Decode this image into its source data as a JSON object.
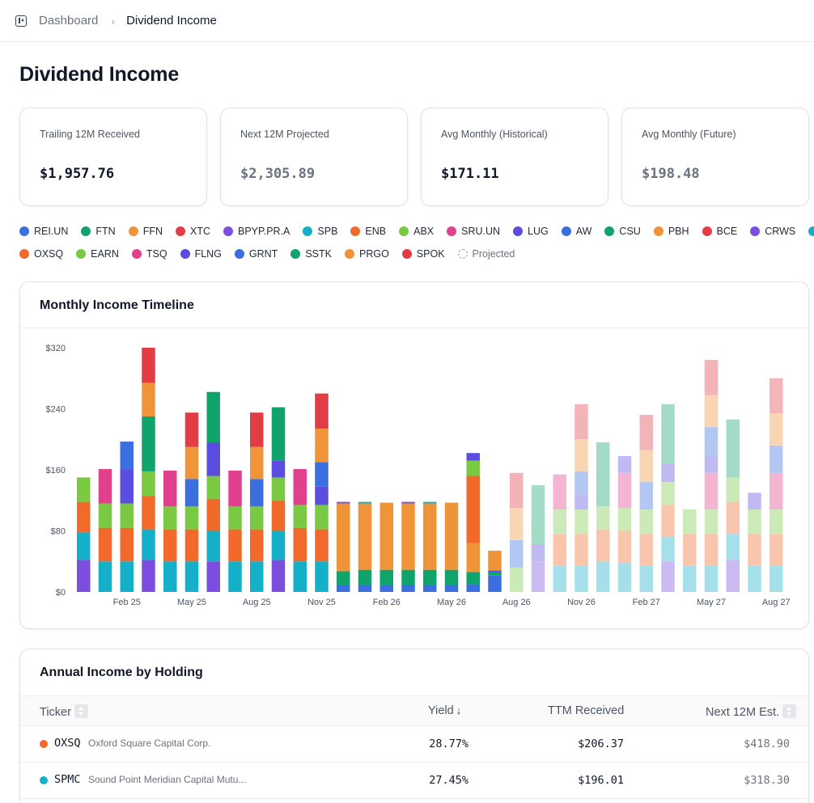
{
  "breadcrumb": {
    "parent": "Dashboard",
    "separator": "›",
    "current": "Dividend Income"
  },
  "page_title": "Dividend Income",
  "stats": [
    {
      "label": "Trailing 12M Received",
      "value": "$1,957.76",
      "projected": false
    },
    {
      "label": "Next 12M Projected",
      "value": "$2,305.89",
      "projected": true
    },
    {
      "label": "Avg Monthly (Historical)",
      "value": "$171.11",
      "projected": false
    },
    {
      "label": "Avg Monthly (Future)",
      "value": "$198.48",
      "projected": true
    }
  ],
  "legend": {
    "rows": [
      [
        {
          "ticker": "REI.UN",
          "color": "#3b6fe0"
        },
        {
          "ticker": "FTN",
          "color": "#10a36b"
        },
        {
          "ticker": "FFN",
          "color": "#f0943a"
        },
        {
          "ticker": "XTC",
          "color": "#e23c44"
        },
        {
          "ticker": "BPYP.PR.A",
          "color": "#7c4ee0"
        },
        {
          "ticker": "SPB",
          "color": "#14b0c9"
        },
        {
          "ticker": "ENB",
          "color": "#f26a2b"
        },
        {
          "ticker": "ABX",
          "color": "#7ac943"
        },
        {
          "ticker": "SRU.UN",
          "color": "#e0408c"
        },
        {
          "ticker": "LUG",
          "color": "#5b4de0"
        },
        {
          "ticker": "AW",
          "color": "#3b6fe0"
        },
        {
          "ticker": "CSU",
          "color": "#10a36b"
        },
        {
          "ticker": "PBH",
          "color": "#f0943a"
        },
        {
          "ticker": "BCE",
          "color": "#e23c44"
        },
        {
          "ticker": "CRWS",
          "color": "#7c4ee0"
        },
        {
          "ticker": "SPMC",
          "color": "#14b0c9"
        }
      ],
      [
        {
          "ticker": "OXSQ",
          "color": "#f26a2b"
        },
        {
          "ticker": "EARN",
          "color": "#7ac943"
        },
        {
          "ticker": "TSQ",
          "color": "#e0408c"
        },
        {
          "ticker": "FLNG",
          "color": "#5b4de0"
        },
        {
          "ticker": "GRNT",
          "color": "#3b6fe0"
        },
        {
          "ticker": "SSTK",
          "color": "#10a36b"
        },
        {
          "ticker": "PRGO",
          "color": "#f0943a"
        },
        {
          "ticker": "SPOK",
          "color": "#e23c44"
        }
      ]
    ],
    "projected_label": "Projected"
  },
  "timeline": {
    "title": "Monthly Income Timeline"
  },
  "chart_data": {
    "type": "bar",
    "stacked": true,
    "title": "Monthly Income Timeline",
    "x_ticks": [
      "Feb 25",
      "May 25",
      "Aug 25",
      "Nov 25",
      "Feb 26",
      "May 26",
      "Aug 26",
      "Nov 26",
      "Feb 27",
      "May 27",
      "Aug 27"
    ],
    "y_ticks": [
      "$0",
      "$80",
      "$160",
      "$240",
      "$320"
    ],
    "ylim": [
      0,
      320
    ],
    "grid": false,
    "colors": {
      "blue": "#3b6fe0",
      "green": "#10a36b",
      "orange": "#f0943a",
      "red": "#e23c44",
      "purple": "#7c4ee0",
      "cyan": "#14b0c9",
      "redorange": "#f26a2b",
      "lime": "#7ac943",
      "pink": "#e0408c",
      "indigo": "#5b4de0"
    },
    "months": [
      {
        "m": "Dec 24",
        "projected": false,
        "segs": [
          [
            "purple",
            42
          ],
          [
            "cyan",
            36
          ],
          [
            "redorange",
            40
          ],
          [
            "lime",
            32
          ]
        ]
      },
      {
        "m": "Jan 25",
        "projected": false,
        "segs": [
          [
            "cyan",
            40
          ],
          [
            "redorange",
            44
          ],
          [
            "lime",
            32
          ],
          [
            "pink",
            45
          ]
        ]
      },
      {
        "m": "Feb 25",
        "projected": false,
        "segs": [
          [
            "cyan",
            40
          ],
          [
            "redorange",
            44
          ],
          [
            "lime",
            32
          ],
          [
            "indigo",
            45
          ],
          [
            "blue",
            36
          ]
        ]
      },
      {
        "m": "Mar 25",
        "projected": false,
        "segs": [
          [
            "purple",
            42
          ],
          [
            "cyan",
            40
          ],
          [
            "redorange",
            44
          ],
          [
            "lime",
            32
          ],
          [
            "green",
            72
          ],
          [
            "orange",
            44
          ],
          [
            "red",
            46
          ]
        ]
      },
      {
        "m": "Apr 25",
        "projected": false,
        "segs": [
          [
            "cyan",
            40
          ],
          [
            "redorange",
            42
          ],
          [
            "lime",
            30
          ],
          [
            "pink",
            47
          ]
        ]
      },
      {
        "m": "May 25",
        "projected": false,
        "segs": [
          [
            "cyan",
            40
          ],
          [
            "redorange",
            42
          ],
          [
            "lime",
            30
          ],
          [
            "blue",
            36
          ],
          [
            "orange",
            42
          ],
          [
            "red",
            45
          ]
        ]
      },
      {
        "m": "Jun 25",
        "projected": false,
        "segs": [
          [
            "purple",
            40
          ],
          [
            "cyan",
            40
          ],
          [
            "redorange",
            42
          ],
          [
            "lime",
            30
          ],
          [
            "indigo",
            44
          ],
          [
            "green",
            66
          ]
        ]
      },
      {
        "m": "Jul 25",
        "projected": false,
        "segs": [
          [
            "cyan",
            40
          ],
          [
            "redorange",
            42
          ],
          [
            "lime",
            30
          ],
          [
            "pink",
            47
          ]
        ]
      },
      {
        "m": "Aug 25",
        "projected": false,
        "segs": [
          [
            "cyan",
            40
          ],
          [
            "redorange",
            42
          ],
          [
            "lime",
            30
          ],
          [
            "blue",
            36
          ],
          [
            "orange",
            42
          ],
          [
            "red",
            45
          ]
        ]
      },
      {
        "m": "Sep 25",
        "projected": false,
        "segs": [
          [
            "purple",
            42
          ],
          [
            "cyan",
            38
          ],
          [
            "redorange",
            40
          ],
          [
            "lime",
            30
          ],
          [
            "indigo",
            22
          ],
          [
            "green",
            70
          ]
        ]
      },
      {
        "m": "Oct 25",
        "projected": false,
        "segs": [
          [
            "cyan",
            40
          ],
          [
            "redorange",
            44
          ],
          [
            "lime",
            30
          ],
          [
            "pink",
            47
          ]
        ]
      },
      {
        "m": "Nov 25",
        "projected": false,
        "segs": [
          [
            "cyan",
            40
          ],
          [
            "redorange",
            42
          ],
          [
            "lime",
            32
          ],
          [
            "indigo",
            24
          ],
          [
            "blue",
            32
          ],
          [
            "orange",
            44
          ],
          [
            "red",
            46
          ]
        ]
      },
      {
        "m": "Dec 25",
        "projected": false,
        "segs": [
          [
            "blue",
            9
          ],
          [
            "green",
            18
          ],
          [
            "orange",
            89
          ],
          [
            "purple",
            2
          ]
        ]
      },
      {
        "m": "Jan 26",
        "projected": false,
        "segs": [
          [
            "blue",
            9
          ],
          [
            "green",
            20
          ],
          [
            "orange",
            87
          ],
          [
            "cyan",
            2
          ]
        ]
      },
      {
        "m": "Feb 26",
        "projected": false,
        "segs": [
          [
            "blue",
            9
          ],
          [
            "green",
            20
          ],
          [
            "orange",
            88
          ]
        ]
      },
      {
        "m": "Mar 26",
        "projected": false,
        "segs": [
          [
            "blue",
            9
          ],
          [
            "green",
            20
          ],
          [
            "orange",
            87
          ],
          [
            "purple",
            2
          ]
        ]
      },
      {
        "m": "Apr 26",
        "projected": false,
        "segs": [
          [
            "blue",
            9
          ],
          [
            "green",
            20
          ],
          [
            "orange",
            87
          ],
          [
            "cyan",
            2
          ]
        ]
      },
      {
        "m": "May 26",
        "projected": false,
        "segs": [
          [
            "blue",
            9
          ],
          [
            "green",
            20
          ],
          [
            "orange",
            88
          ]
        ]
      },
      {
        "m": "Jun 26",
        "projected": false,
        "segs": [
          [
            "blue",
            10
          ],
          [
            "green",
            16
          ],
          [
            "orange",
            38
          ],
          [
            "redorange",
            88
          ],
          [
            "lime",
            20
          ],
          [
            "indigo",
            10
          ]
        ]
      },
      {
        "m": "Jul 26",
        "projected": false,
        "segs": [
          [
            "blue",
            22
          ],
          [
            "green",
            4
          ],
          [
            "indigo",
            2
          ],
          [
            "orange",
            26
          ]
        ]
      },
      {
        "m": "Aug 26",
        "projected": true,
        "segs": [
          [
            "lime",
            32
          ],
          [
            "blue",
            36
          ],
          [
            "orange",
            42
          ],
          [
            "red",
            46
          ]
        ]
      },
      {
        "m": "Sep 26",
        "projected": true,
        "segs": [
          [
            "purple",
            40
          ],
          [
            "indigo",
            22
          ],
          [
            "green",
            78
          ]
        ]
      },
      {
        "m": "Oct 26",
        "projected": true,
        "segs": [
          [
            "cyan",
            34
          ],
          [
            "redorange",
            42
          ],
          [
            "lime",
            32
          ],
          [
            "pink",
            46
          ]
        ]
      },
      {
        "m": "Nov 26",
        "projected": true,
        "segs": [
          [
            "cyan",
            34
          ],
          [
            "redorange",
            42
          ],
          [
            "lime",
            32
          ],
          [
            "indigo",
            20
          ],
          [
            "blue",
            30
          ],
          [
            "orange",
            42
          ],
          [
            "red",
            46
          ]
        ]
      },
      {
        "m": "Dec 26",
        "projected": true,
        "segs": [
          [
            "cyan",
            40
          ],
          [
            "redorange",
            42
          ],
          [
            "lime",
            30
          ],
          [
            "green",
            84
          ]
        ]
      },
      {
        "m": "Jan 27",
        "projected": true,
        "segs": [
          [
            "cyan",
            38
          ],
          [
            "redorange",
            42
          ],
          [
            "lime",
            30
          ],
          [
            "pink",
            46
          ],
          [
            "indigo",
            22
          ]
        ]
      },
      {
        "m": "Feb 27",
        "projected": true,
        "segs": [
          [
            "cyan",
            34
          ],
          [
            "redorange",
            42
          ],
          [
            "lime",
            32
          ],
          [
            "blue",
            36
          ],
          [
            "orange",
            42
          ],
          [
            "red",
            46
          ]
        ]
      },
      {
        "m": "Mar 27",
        "projected": true,
        "segs": [
          [
            "purple",
            40
          ],
          [
            "cyan",
            32
          ],
          [
            "redorange",
            42
          ],
          [
            "lime",
            30
          ],
          [
            "indigo",
            24
          ],
          [
            "green",
            78
          ]
        ]
      },
      {
        "m": "Apr 27",
        "projected": true,
        "segs": [
          [
            "cyan",
            34
          ],
          [
            "redorange",
            42
          ],
          [
            "lime",
            32
          ]
        ]
      },
      {
        "m": "May 27",
        "projected": true,
        "segs": [
          [
            "cyan",
            34
          ],
          [
            "redorange",
            42
          ],
          [
            "lime",
            32
          ],
          [
            "pink",
            48
          ],
          [
            "indigo",
            22
          ],
          [
            "blue",
            38
          ],
          [
            "orange",
            42
          ],
          [
            "red",
            46
          ]
        ]
      },
      {
        "m": "Jun 27",
        "projected": true,
        "segs": [
          [
            "purple",
            42
          ],
          [
            "cyan",
            34
          ],
          [
            "redorange",
            42
          ],
          [
            "lime",
            32
          ],
          [
            "green",
            76
          ]
        ]
      },
      {
        "m": "Jul 27",
        "projected": true,
        "segs": [
          [
            "cyan",
            34
          ],
          [
            "redorange",
            42
          ],
          [
            "lime",
            32
          ],
          [
            "indigo",
            22
          ]
        ]
      },
      {
        "m": "Aug 27",
        "projected": true,
        "segs": [
          [
            "cyan",
            34
          ],
          [
            "redorange",
            42
          ],
          [
            "lime",
            32
          ],
          [
            "pink",
            48
          ],
          [
            "blue",
            36
          ],
          [
            "orange",
            42
          ],
          [
            "red",
            46
          ]
        ]
      }
    ]
  },
  "table": {
    "title": "Annual Income by Holding",
    "columns": {
      "ticker": "Ticker",
      "yield": "Yield",
      "yield_sort": "↓",
      "ttm": "TTM Received",
      "next": "Next 12M Est."
    },
    "rows": [
      {
        "ticker": "OXSQ",
        "name": "Oxford Square Capital Corp.",
        "color": "#f26a2b",
        "yield": "28.77%",
        "ttm": "$206.37",
        "next": "$418.90"
      },
      {
        "ticker": "SPMC",
        "name": "Sound Point Meridian Capital Mutu...",
        "color": "#14b0c9",
        "yield": "27.45%",
        "ttm": "$196.01",
        "next": "$318.30"
      }
    ]
  }
}
